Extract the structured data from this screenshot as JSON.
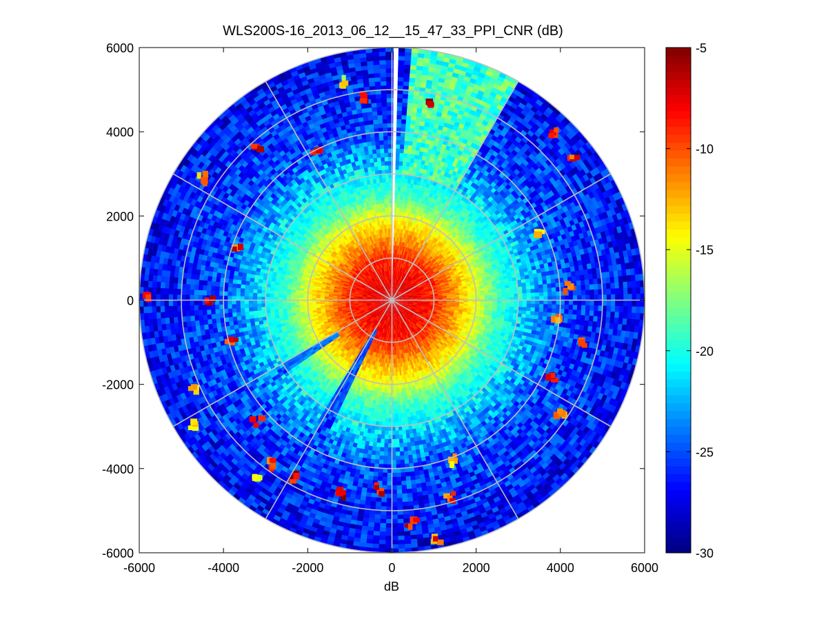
{
  "chart_data": {
    "type": "heatmap",
    "subtype": "polar-ppi",
    "title": "WLS200S-16_2013_06_12__15_47_33_PPI_CNR (dB)",
    "xlabel": "dB",
    "ylabel": "",
    "xlim": [
      -6000,
      6000
    ],
    "ylim": [
      -6000,
      6000
    ],
    "x_ticks": [
      -6000,
      -4000,
      -2000,
      0,
      2000,
      4000,
      6000
    ],
    "y_ticks": [
      -6000,
      -4000,
      -2000,
      0,
      2000,
      4000,
      6000
    ],
    "x_tick_labels": [
      "-6000",
      "-4000",
      "-2000",
      "0",
      "2000",
      "4000",
      "6000"
    ],
    "y_tick_labels": [
      "6000",
      "4000",
      "2000",
      "0",
      "-2000",
      "-4000",
      "-6000"
    ],
    "max_range": 6000,
    "range_rings": [
      1000,
      2000,
      3000,
      4000,
      5000,
      6000
    ],
    "spokes_deg": [
      0,
      30,
      60,
      90,
      120,
      150,
      180,
      210,
      240,
      270,
      300,
      330
    ],
    "gap_azimuth_deg": [
      359.5,
      1.5
    ],
    "colorbar": {
      "clim": [
        -30,
        -5
      ],
      "ticks": [
        -5,
        -10,
        -15,
        -20,
        -25,
        -30
      ],
      "tick_labels": [
        "-5",
        "-10",
        "-15",
        "-20",
        "-25",
        "-30"
      ],
      "colormap": "jet"
    },
    "cnr_profile_by_range": [
      {
        "range": 0,
        "cnr": -7
      },
      {
        "range": 1000,
        "cnr": -9
      },
      {
        "range": 1500,
        "cnr": -12
      },
      {
        "range": 2000,
        "cnr": -15
      },
      {
        "range": 2500,
        "cnr": -19
      },
      {
        "range": 3000,
        "cnr": -21
      },
      {
        "range": 3500,
        "cnr": -23
      },
      {
        "range": 4000,
        "cnr": -25
      },
      {
        "range": 5000,
        "cnr": -26
      },
      {
        "range": 6000,
        "cnr": -27
      }
    ],
    "sector_features": [
      {
        "name": "high-cnr wedge NNE",
        "az_from": 5,
        "az_to": 30,
        "range_from": 3000,
        "range_to": 6000,
        "cnr": -19
      },
      {
        "name": "low-cnr wedge SSW",
        "az_from": 205,
        "az_to": 212,
        "range_from": 800,
        "range_to": 4500,
        "cnr": -25
      },
      {
        "name": "low-cnr wedge WSW",
        "az_from": 236,
        "az_to": 240,
        "range_from": 1500,
        "range_to": 4000,
        "cnr": -24
      }
    ],
    "hotspots": [
      {
        "x": -3200,
        "y": 3600,
        "cnr": -8
      },
      {
        "x": -4500,
        "y": 2900,
        "cnr": -12
      },
      {
        "x": -1800,
        "y": 3500,
        "cnr": -10
      },
      {
        "x": -600,
        "y": 4800,
        "cnr": -8
      },
      {
        "x": -1200,
        "y": 5200,
        "cnr": -14
      },
      {
        "x": 900,
        "y": 4700,
        "cnr": -6
      },
      {
        "x": 3800,
        "y": 4000,
        "cnr": -10
      },
      {
        "x": 4300,
        "y": 3300,
        "cnr": -9
      },
      {
        "x": 3500,
        "y": 1600,
        "cnr": -12
      },
      {
        "x": 4200,
        "y": 300,
        "cnr": -9
      },
      {
        "x": 3900,
        "y": -400,
        "cnr": -11
      },
      {
        "x": 4500,
        "y": -1000,
        "cnr": -8
      },
      {
        "x": 3800,
        "y": -1800,
        "cnr": -7
      },
      {
        "x": 4000,
        "y": -2700,
        "cnr": -10
      },
      {
        "x": -3700,
        "y": 1200,
        "cnr": -9
      },
      {
        "x": -4300,
        "y": 0,
        "cnr": -7
      },
      {
        "x": -3800,
        "y": -900,
        "cnr": -8
      },
      {
        "x": -4700,
        "y": -2100,
        "cnr": -12
      },
      {
        "x": -5800,
        "y": 100,
        "cnr": -11
      },
      {
        "x": -3200,
        "y": -2900,
        "cnr": -8
      },
      {
        "x": -2900,
        "y": -3900,
        "cnr": -9
      },
      {
        "x": -2300,
        "y": -4200,
        "cnr": -7
      },
      {
        "x": -1200,
        "y": -4600,
        "cnr": -7
      },
      {
        "x": -300,
        "y": -4500,
        "cnr": -9
      },
      {
        "x": 500,
        "y": -5300,
        "cnr": -8
      },
      {
        "x": 1100,
        "y": -5700,
        "cnr": -10
      },
      {
        "x": 1500,
        "y": -3800,
        "cnr": -12
      },
      {
        "x": 1400,
        "y": -4700,
        "cnr": -10
      },
      {
        "x": -3200,
        "y": -4300,
        "cnr": -14
      },
      {
        "x": -4700,
        "y": -3000,
        "cnr": -14
      }
    ]
  }
}
